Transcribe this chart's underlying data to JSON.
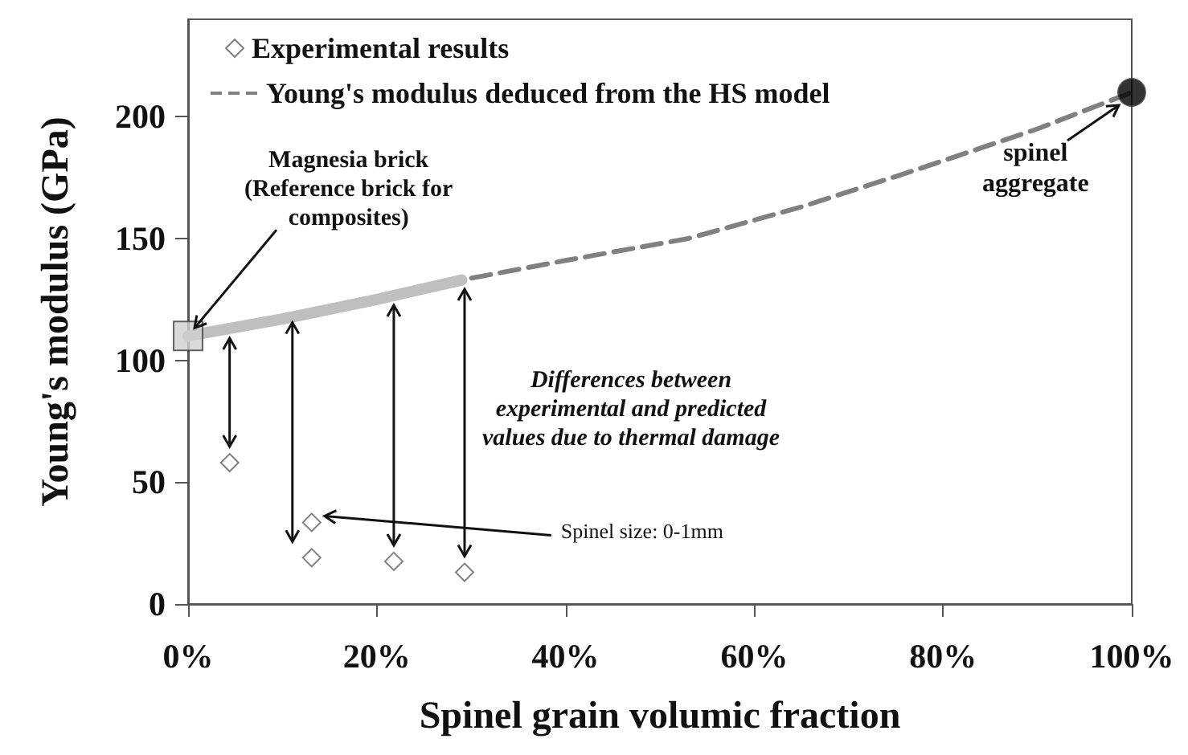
{
  "chart_data": {
    "type": "scatter",
    "xlabel": "Spinel grain volumic fraction",
    "ylabel": "Young's modulus (GPa)",
    "xlim": [
      0,
      100
    ],
    "ylim": [
      0,
      240
    ],
    "xticks": [
      {
        "value": 0,
        "label": "0%"
      },
      {
        "value": 20,
        "label": "20%"
      },
      {
        "value": 40,
        "label": "40%"
      },
      {
        "value": 60,
        "label": "60%"
      },
      {
        "value": 80,
        "label": "80%"
      },
      {
        "value": 100,
        "label": "100%"
      }
    ],
    "yticks": [
      0,
      50,
      100,
      150,
      200
    ],
    "grid": false,
    "legend": "top left",
    "series": [
      {
        "type": "scatter",
        "name": "Experimental results",
        "color": "#606060",
        "marker": "diamond",
        "x": [
          4.4,
          13.1,
          13.1,
          21.8,
          29.3
        ],
        "values": [
          58,
          33.5,
          19,
          17.5,
          13
        ]
      },
      {
        "type": "line",
        "name": "Young's modulus deduced from the HS model",
        "color": "#808080",
        "line_style": "dashed",
        "marker": "none",
        "x": [
          0,
          10,
          20,
          29,
          40,
          53,
          65,
          77,
          90,
          100
        ],
        "values": [
          110,
          117,
          125,
          133,
          141,
          150,
          163,
          178,
          195,
          210
        ]
      },
      {
        "type": "line",
        "color": "#bfbfbf",
        "line_style": "solid",
        "marker": "none",
        "x": [
          0,
          10,
          20,
          29
        ],
        "values": [
          110,
          117,
          125,
          133
        ]
      },
      {
        "type": "scatter",
        "color": "#d0d0d0",
        "marker": "square",
        "x": [
          0
        ],
        "values": [
          110
        ]
      },
      {
        "type": "scatter",
        "color": "#000000",
        "marker": "circle",
        "x": [
          100
        ],
        "values": [
          210
        ]
      }
    ],
    "annotations": [
      {
        "text": "Magnesia brick\n(Reference brick for\ncomposites)",
        "x": 0,
        "y": 110
      },
      {
        "text": "spinel\naggregate",
        "x": 100,
        "y": 210
      },
      "Differences between\nexperimental and predicted\nvalues due to thermal damage",
      {
        "text": "Spinel size: 0-1mm",
        "x": 13.1,
        "y": 33.5
      }
    ]
  }
}
